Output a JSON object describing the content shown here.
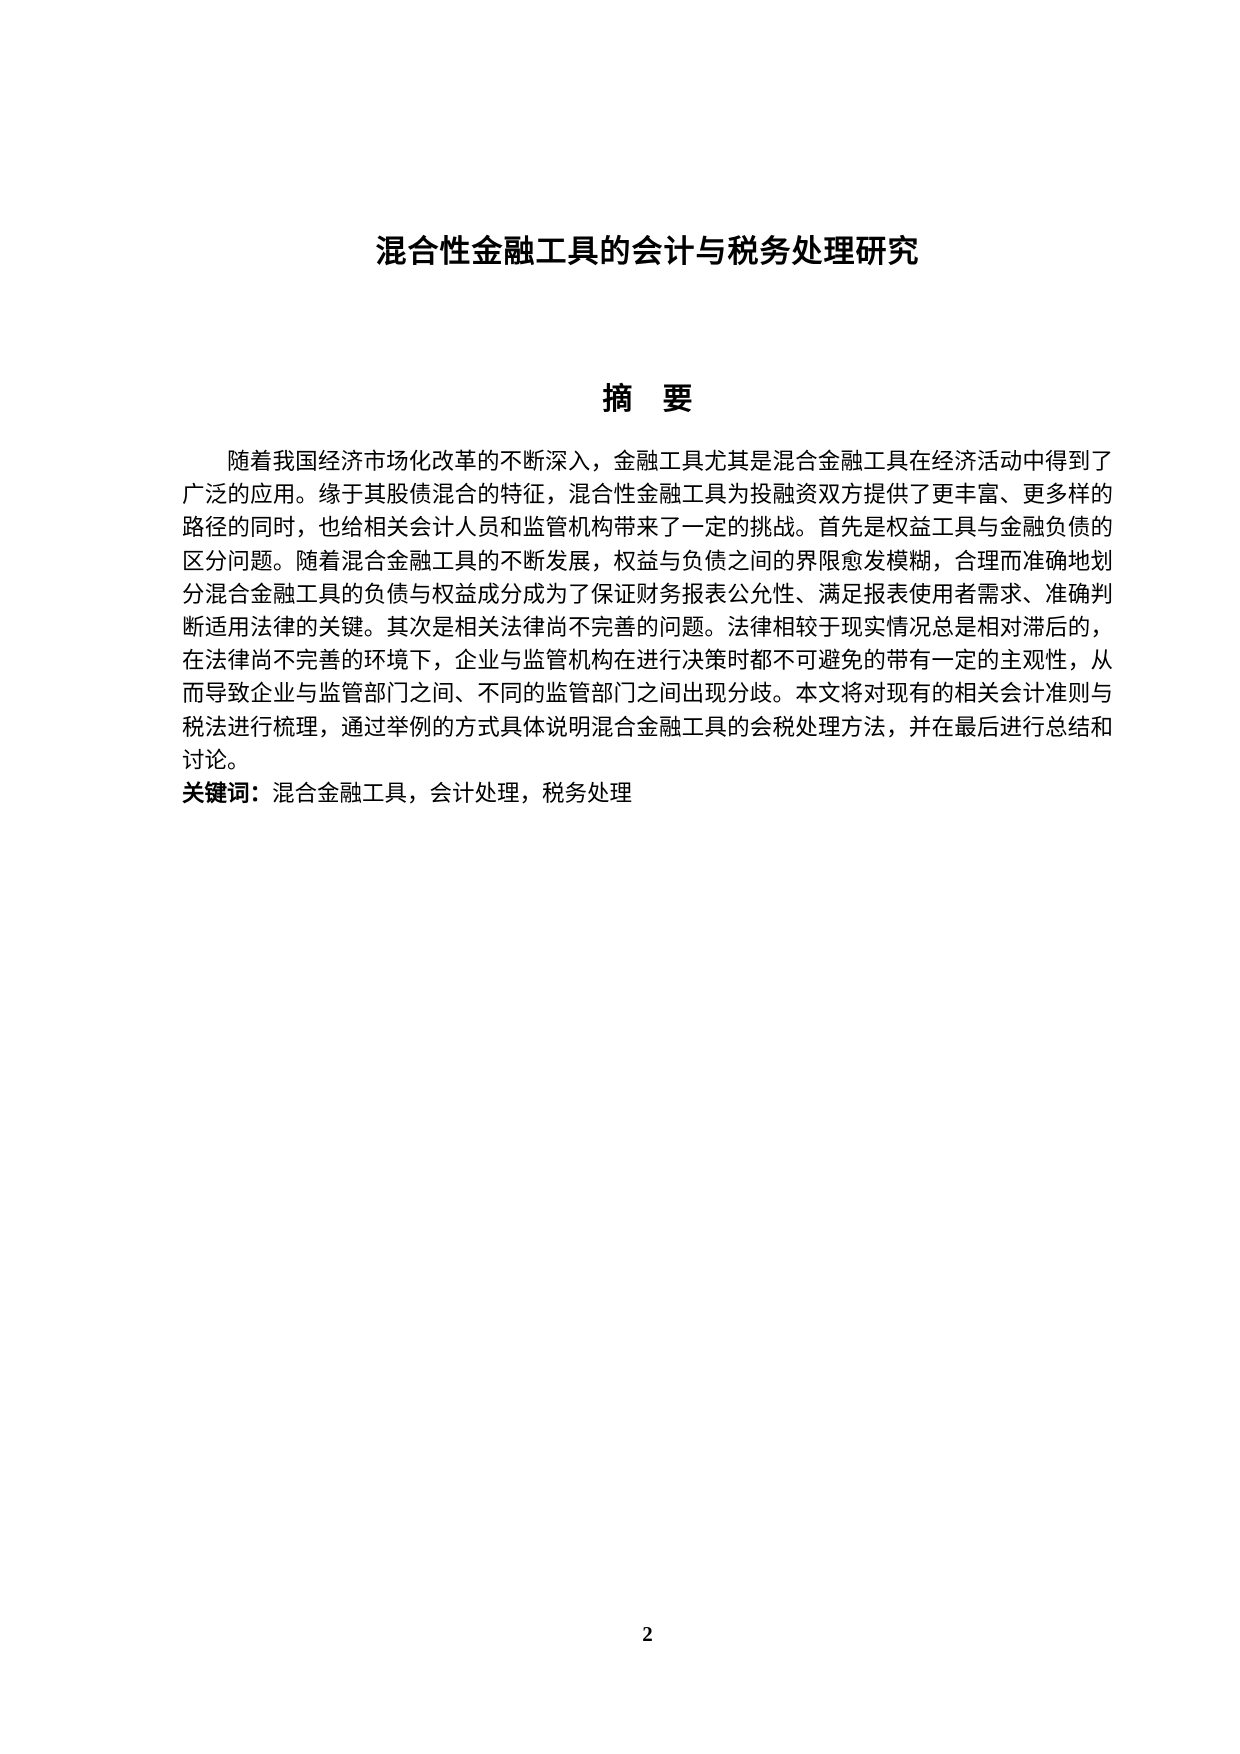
{
  "document": {
    "title": "混合性金融工具的会计与税务处理研究"
  },
  "abstract": {
    "heading": "摘　要",
    "body": "随着我国经济市场化改革的不断深入，金融工具尤其是混合金融工具在经济活动中得到了广泛的应用。缘于其股债混合的特征，混合性金融工具为投融资双方提供了更丰富、更多样的路径的同时，也给相关会计人员和监管机构带来了一定的挑战。首先是权益工具与金融负债的区分问题。随着混合金融工具的不断发展，权益与负债之间的界限愈发模糊，合理而准确地划分混合金融工具的负债与权益成分成为了保证财务报表公允性、满足报表使用者需求、准确判断适用法律的关键。其次是相关法律尚不完善的问题。法律相较于现实情况总是相对滞后的，在法律尚不完善的环境下，企业与监管机构在进行决策时都不可避免的带有一定的主观性，从而导致企业与监管部门之间、不同的监管部门之间出现分歧。本文将对现有的相关会计准则与税法进行梳理，通过举例的方式具体说明混合金融工具的会税处理方法，并在最后进行总结和讨论。",
    "keywords_label": "关键词：",
    "keywords": "混合金融工具，会计处理，税务处理"
  },
  "footer": {
    "page_number": "2"
  }
}
